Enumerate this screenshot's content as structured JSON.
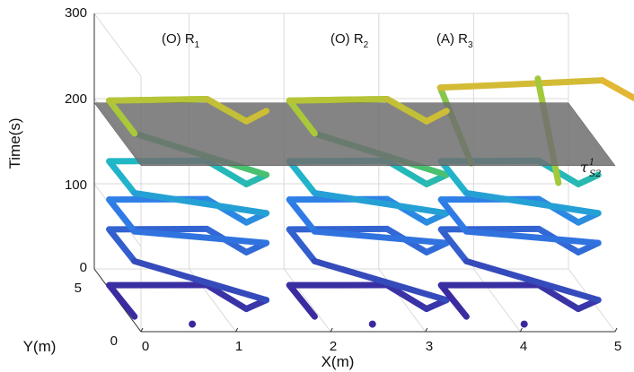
{
  "chart_data": {
    "type": "line3d",
    "title": "",
    "xlabel": "X(m)",
    "ylabel": "Y(m)",
    "zlabel": "Time(s)",
    "xlim": [
      0,
      5
    ],
    "ylim": [
      0,
      5
    ],
    "zlim": [
      0,
      300
    ],
    "x_ticks": [
      "0",
      "1",
      "2",
      "3",
      "4",
      "5"
    ],
    "y_ticks": [
      "0",
      "5"
    ],
    "z_ticks": [
      "0",
      "100",
      "200",
      "300"
    ],
    "grid": true,
    "colormap_start": "#3a2a9e",
    "colormap_end": "#f5e625",
    "plane": {
      "time": 195,
      "color": "#6e6e6e",
      "label": "τ",
      "label_sup": "1",
      "label_sub": "S2"
    },
    "robots": [
      {
        "label_prefix": "(O) R",
        "label_sub": "1",
        "x_offset": 0.0
      },
      {
        "label_prefix": "(O) R",
        "label_sub": "2",
        "x_offset": 1.9
      },
      {
        "label_prefix": "(A) R",
        "label_sub": "3",
        "x_offset": 3.5
      }
    ]
  }
}
